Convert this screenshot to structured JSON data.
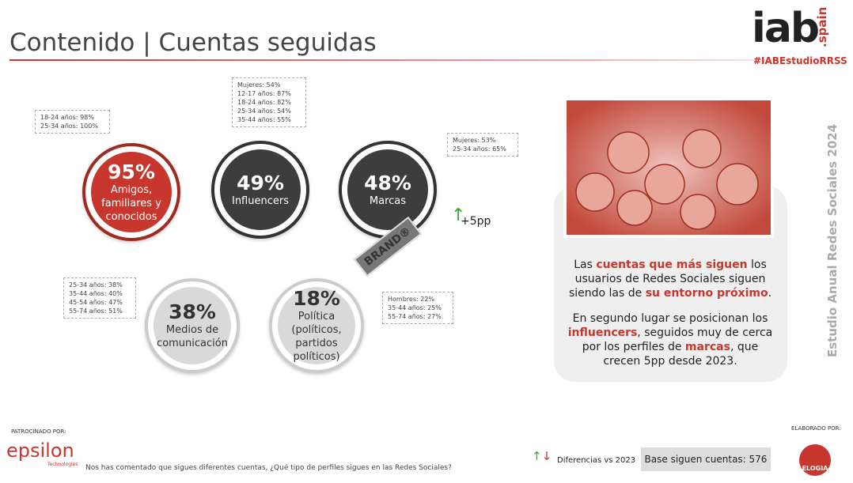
{
  "header": {
    "title": "Contenido | Cuentas seguidas",
    "logo": "iab",
    "logo_suffix": ".spain",
    "hashtag": "#IABEstudioRRSS",
    "side_label": "Estudio Anual Redes Sociales 2024"
  },
  "circles": [
    {
      "value": "95%",
      "label": "Amigos, familiares y conocidos",
      "callout": [
        "18-24 años: 98%",
        "25-34 años: 100%"
      ]
    },
    {
      "value": "49%",
      "label": "Influencers",
      "callout": [
        "Mujeres: 54%",
        "12-17 años: 87%",
        "18-24 años: 82%",
        "25-34 años: 54%",
        "35-44 años: 55%"
      ]
    },
    {
      "value": "48%",
      "label": "Marcas",
      "callout": [
        "Mujeres: 53%",
        "25-34 años: 65%"
      ],
      "change": "+5pp",
      "tag": "BRAND®"
    },
    {
      "value": "38%",
      "label": "Medios de comunicación",
      "callout": [
        "25-34 años: 38%",
        "35-44 años: 40%",
        "45-54 años: 47%",
        "55-74 años: 51%"
      ]
    },
    {
      "value": "18%",
      "label": "Política (políticos, partidos políticos)",
      "callout": [
        "Hombres: 22%",
        "35-44 años: 25%",
        "55-74 años: 27%"
      ]
    }
  ],
  "summary": {
    "paragraphs": [
      [
        "Las ",
        "cuentas que más siguen",
        " los usuarios de Redes Sociales siguen siendo las de ",
        "su entorno próximo",
        "."
      ],
      [
        "En segundo lugar se posicionan los ",
        "influencers",
        ", seguidos muy de cerca por los perfiles de ",
        "marcas",
        ", que crecen 5pp desde 2023."
      ]
    ]
  },
  "footer": {
    "sponsor_label": "PATROCINADO POR:",
    "sponsor": "epsilon",
    "sponsor_sub": "Technologies",
    "question": "Nos has comentado que sigues diferentes cuentas, ¿Qué tipo de perfiles sigues en las Redes Sociales?",
    "legend": "Diferencias vs 2023",
    "base": "Base siguen cuentas: 576",
    "made_by_label": "ELABORADO POR:",
    "made_by": "ELOGIA"
  }
}
